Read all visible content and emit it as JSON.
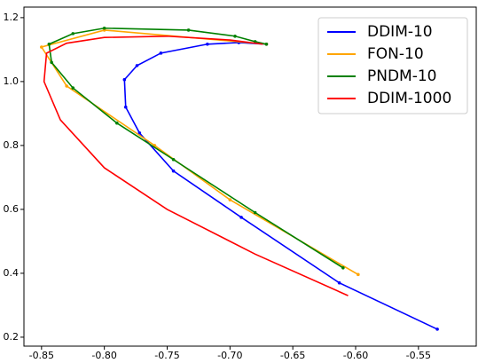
{
  "chart_data": {
    "type": "line",
    "xlim": [
      -0.864,
      -0.504
    ],
    "ylim": [
      0.172,
      1.233
    ],
    "xticks": [
      -0.85,
      {
        "value": -0.8,
        "label": "-0.80"
      },
      -0.75,
      {
        "value": -0.7,
        "label": "-0.70"
      },
      -0.65,
      {
        "value": -0.6,
        "label": "-0.60"
      },
      -0.55
    ],
    "yticks": [
      0.2,
      0.4,
      0.6,
      0.8,
      {
        "value": 1,
        "label": "1.0"
      },
      1.2
    ],
    "legend": "upper right",
    "series": [
      {
        "name": "DDIM-10",
        "color": "#0000ff",
        "markers": true,
        "x": [
          -0.535,
          -0.613,
          -0.691,
          -0.745,
          -0.772,
          -0.783,
          -0.784,
          -0.774,
          -0.755,
          -0.718,
          -0.693,
          -0.671
        ],
        "values": [
          0.225,
          0.37,
          0.575,
          0.72,
          0.839,
          0.92,
          1.006,
          1.05,
          1.089,
          1.117,
          1.122,
          1.117
        ]
      },
      {
        "name": "FON-10",
        "color": "#ffa500",
        "markers": true,
        "x": [
          -0.598,
          -0.7,
          -0.76,
          -0.83,
          -0.85,
          -0.8,
          -0.671
        ],
        "values": [
          0.396,
          0.63,
          0.8,
          0.986,
          1.108,
          1.161,
          1.117
        ]
      },
      {
        "name": "PNDM-10",
        "color": "#008000",
        "markers": true,
        "x": [
          -0.61,
          -0.68,
          -0.745,
          -0.79,
          -0.825,
          -0.842,
          -0.844,
          -0.825,
          -0.8,
          -0.733,
          -0.696,
          -0.68,
          -0.671
        ],
        "values": [
          0.417,
          0.59,
          0.756,
          0.87,
          0.98,
          1.06,
          1.117,
          1.15,
          1.167,
          1.161,
          1.142,
          1.125,
          1.117
        ]
      },
      {
        "name": "DDIM-1000",
        "color": "#ff0000",
        "markers": false,
        "x": [
          -0.606,
          -0.68,
          -0.75,
          -0.8,
          -0.835,
          -0.848,
          -0.846,
          -0.83,
          -0.8,
          -0.75,
          -0.7,
          -0.674
        ],
        "values": [
          0.33,
          0.46,
          0.6,
          0.73,
          0.88,
          1.0,
          1.089,
          1.12,
          1.138,
          1.142,
          1.13,
          1.117
        ]
      }
    ]
  }
}
